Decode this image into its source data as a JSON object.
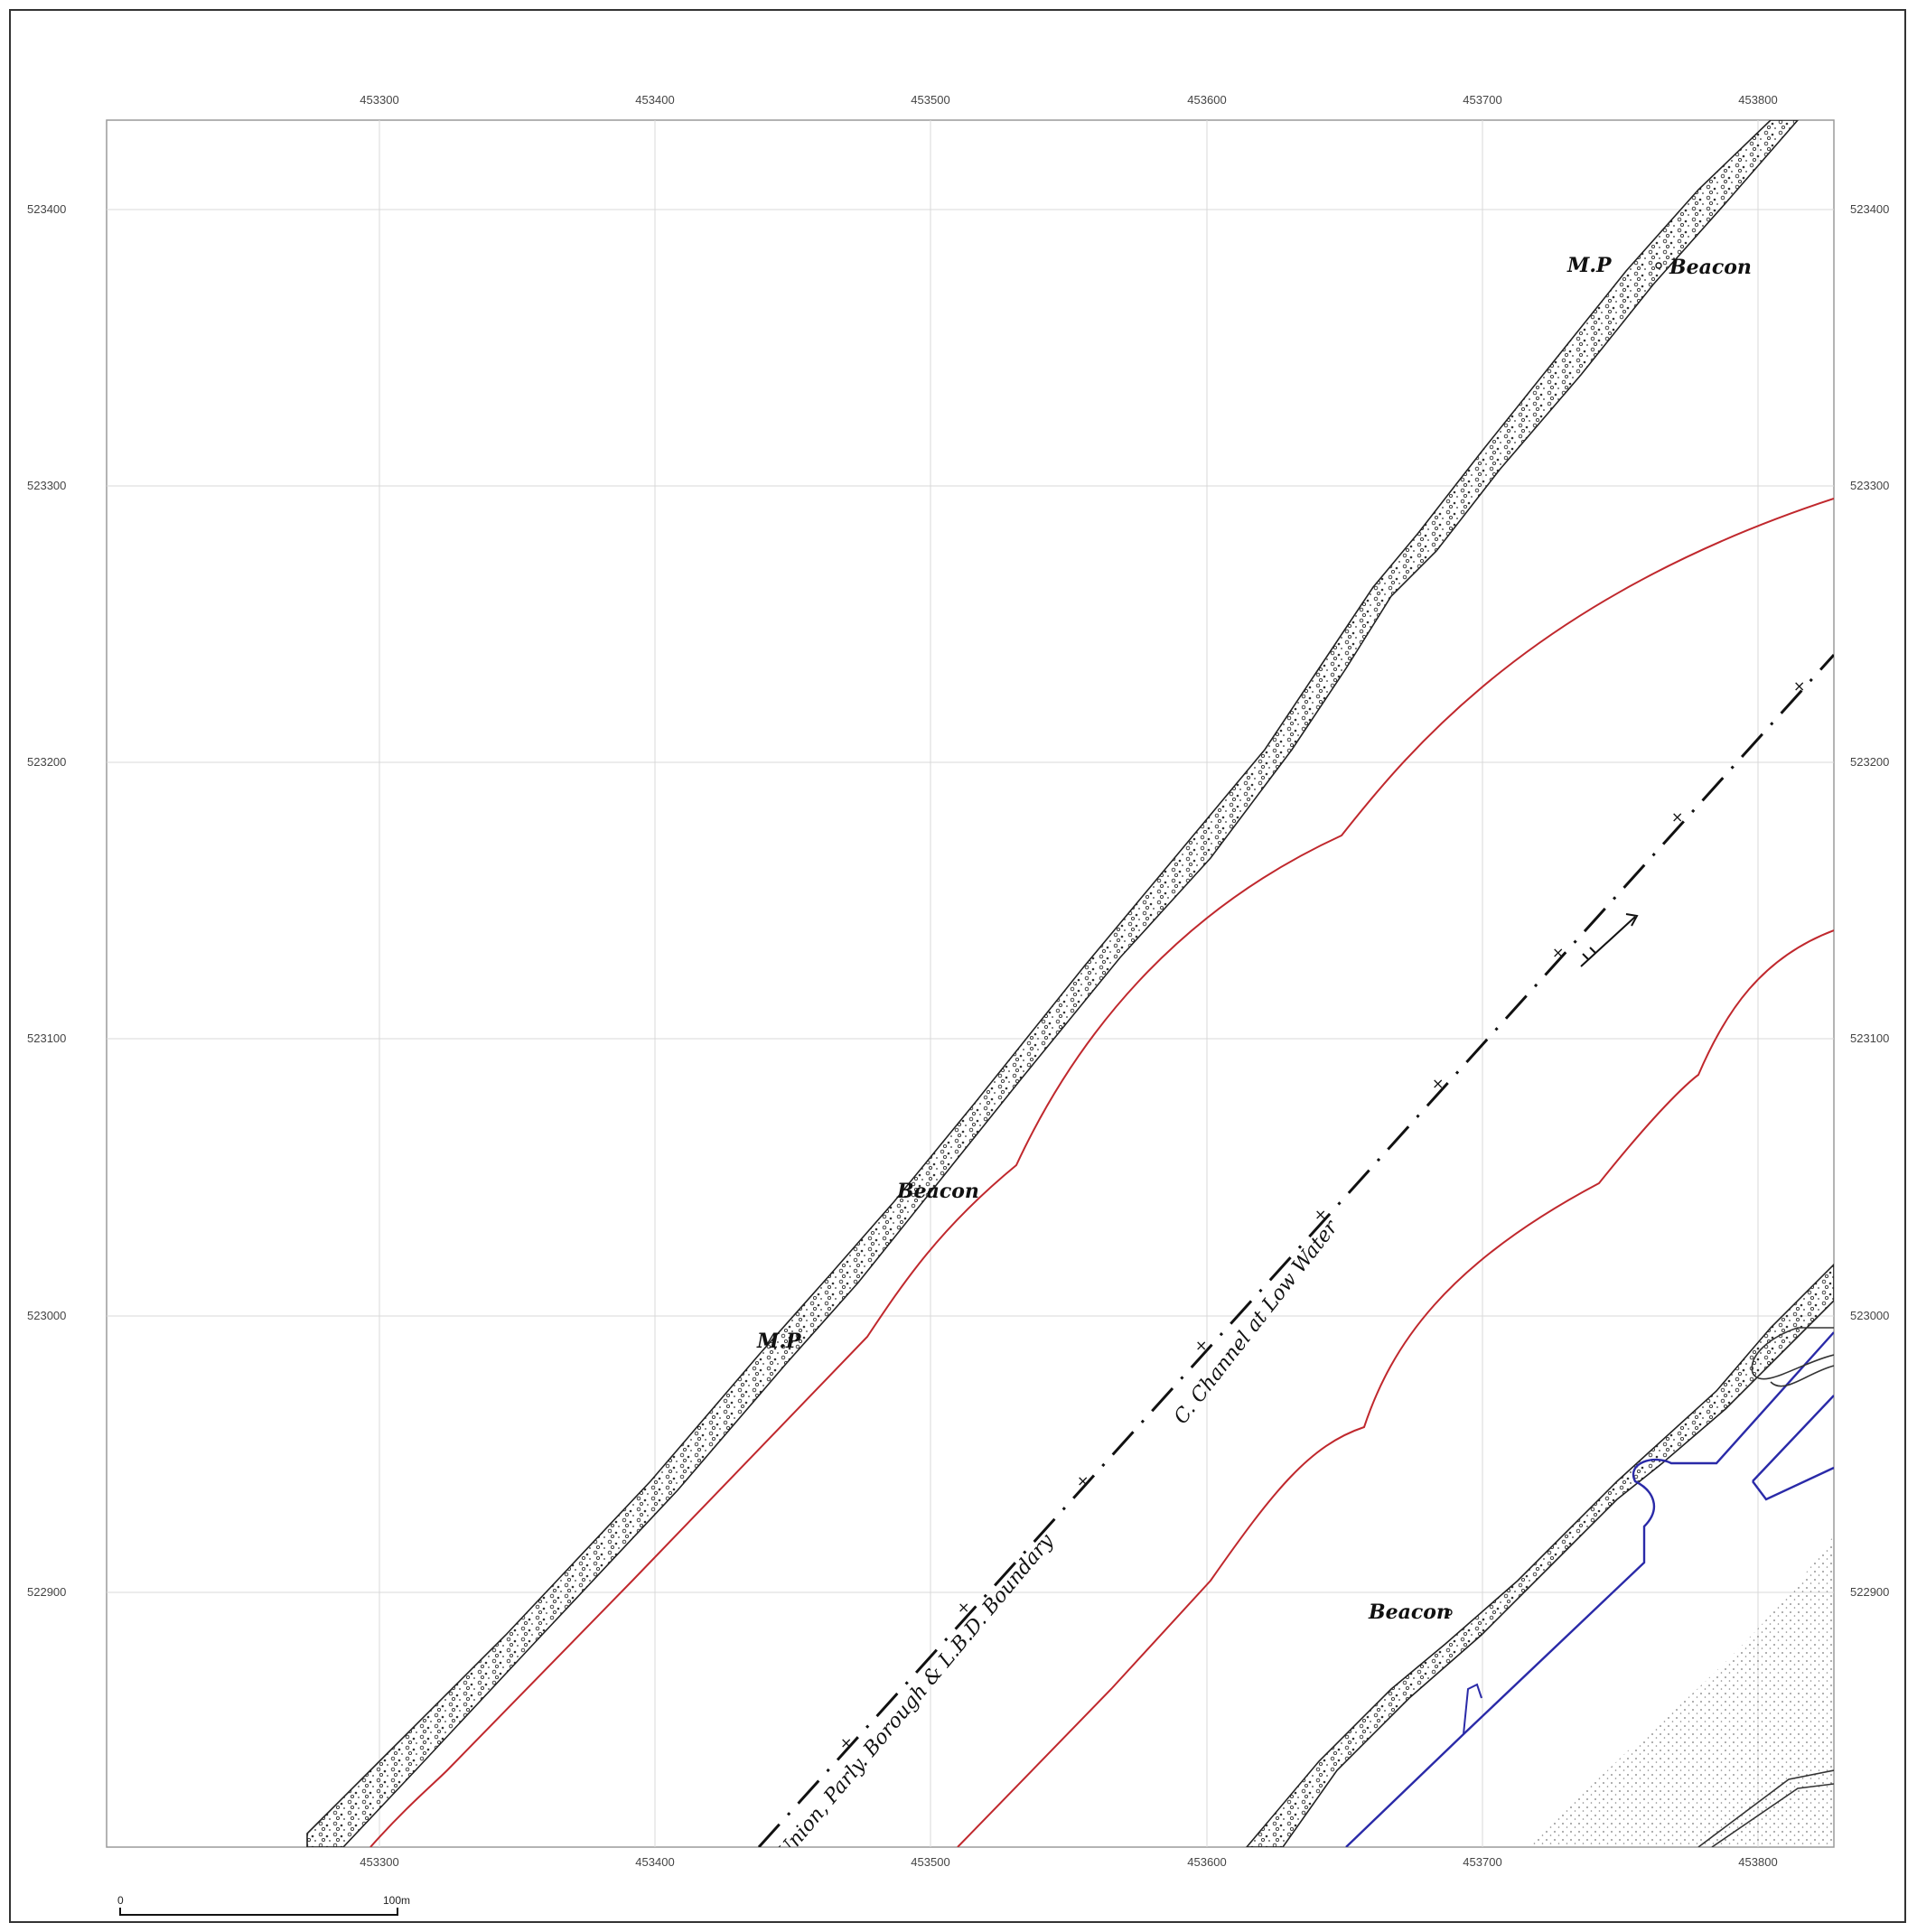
{
  "map": {
    "x_ticks_top": [
      "453300",
      "453400",
      "453500",
      "453600",
      "453700",
      "453800"
    ],
    "x_ticks_bottom": [
      "453300",
      "453400",
      "453500",
      "453600",
      "453700",
      "453800"
    ],
    "y_ticks_left": [
      "523400",
      "523300",
      "523200",
      "523100",
      "523000",
      "522900"
    ],
    "y_ticks_right": [
      "523400",
      "523300",
      "523200",
      "523100",
      "523000",
      "522900"
    ],
    "labels": {
      "mp_top": "M.P",
      "beacon_top": "Beacon",
      "beacon_mid": "Beacon",
      "mp_mid": "M.P",
      "beacon_low": "Beacon",
      "channel": "C. Channel at Low Water",
      "boundary": "Union, Parly. Borough & L.B.D. Boundary"
    },
    "scale": {
      "start": "0",
      "end": "100m"
    },
    "colors": {
      "red_line": "#c0282d",
      "blue_line": "#2a2aa8",
      "grid": "#d8d8d8",
      "ink": "#111111"
    }
  }
}
